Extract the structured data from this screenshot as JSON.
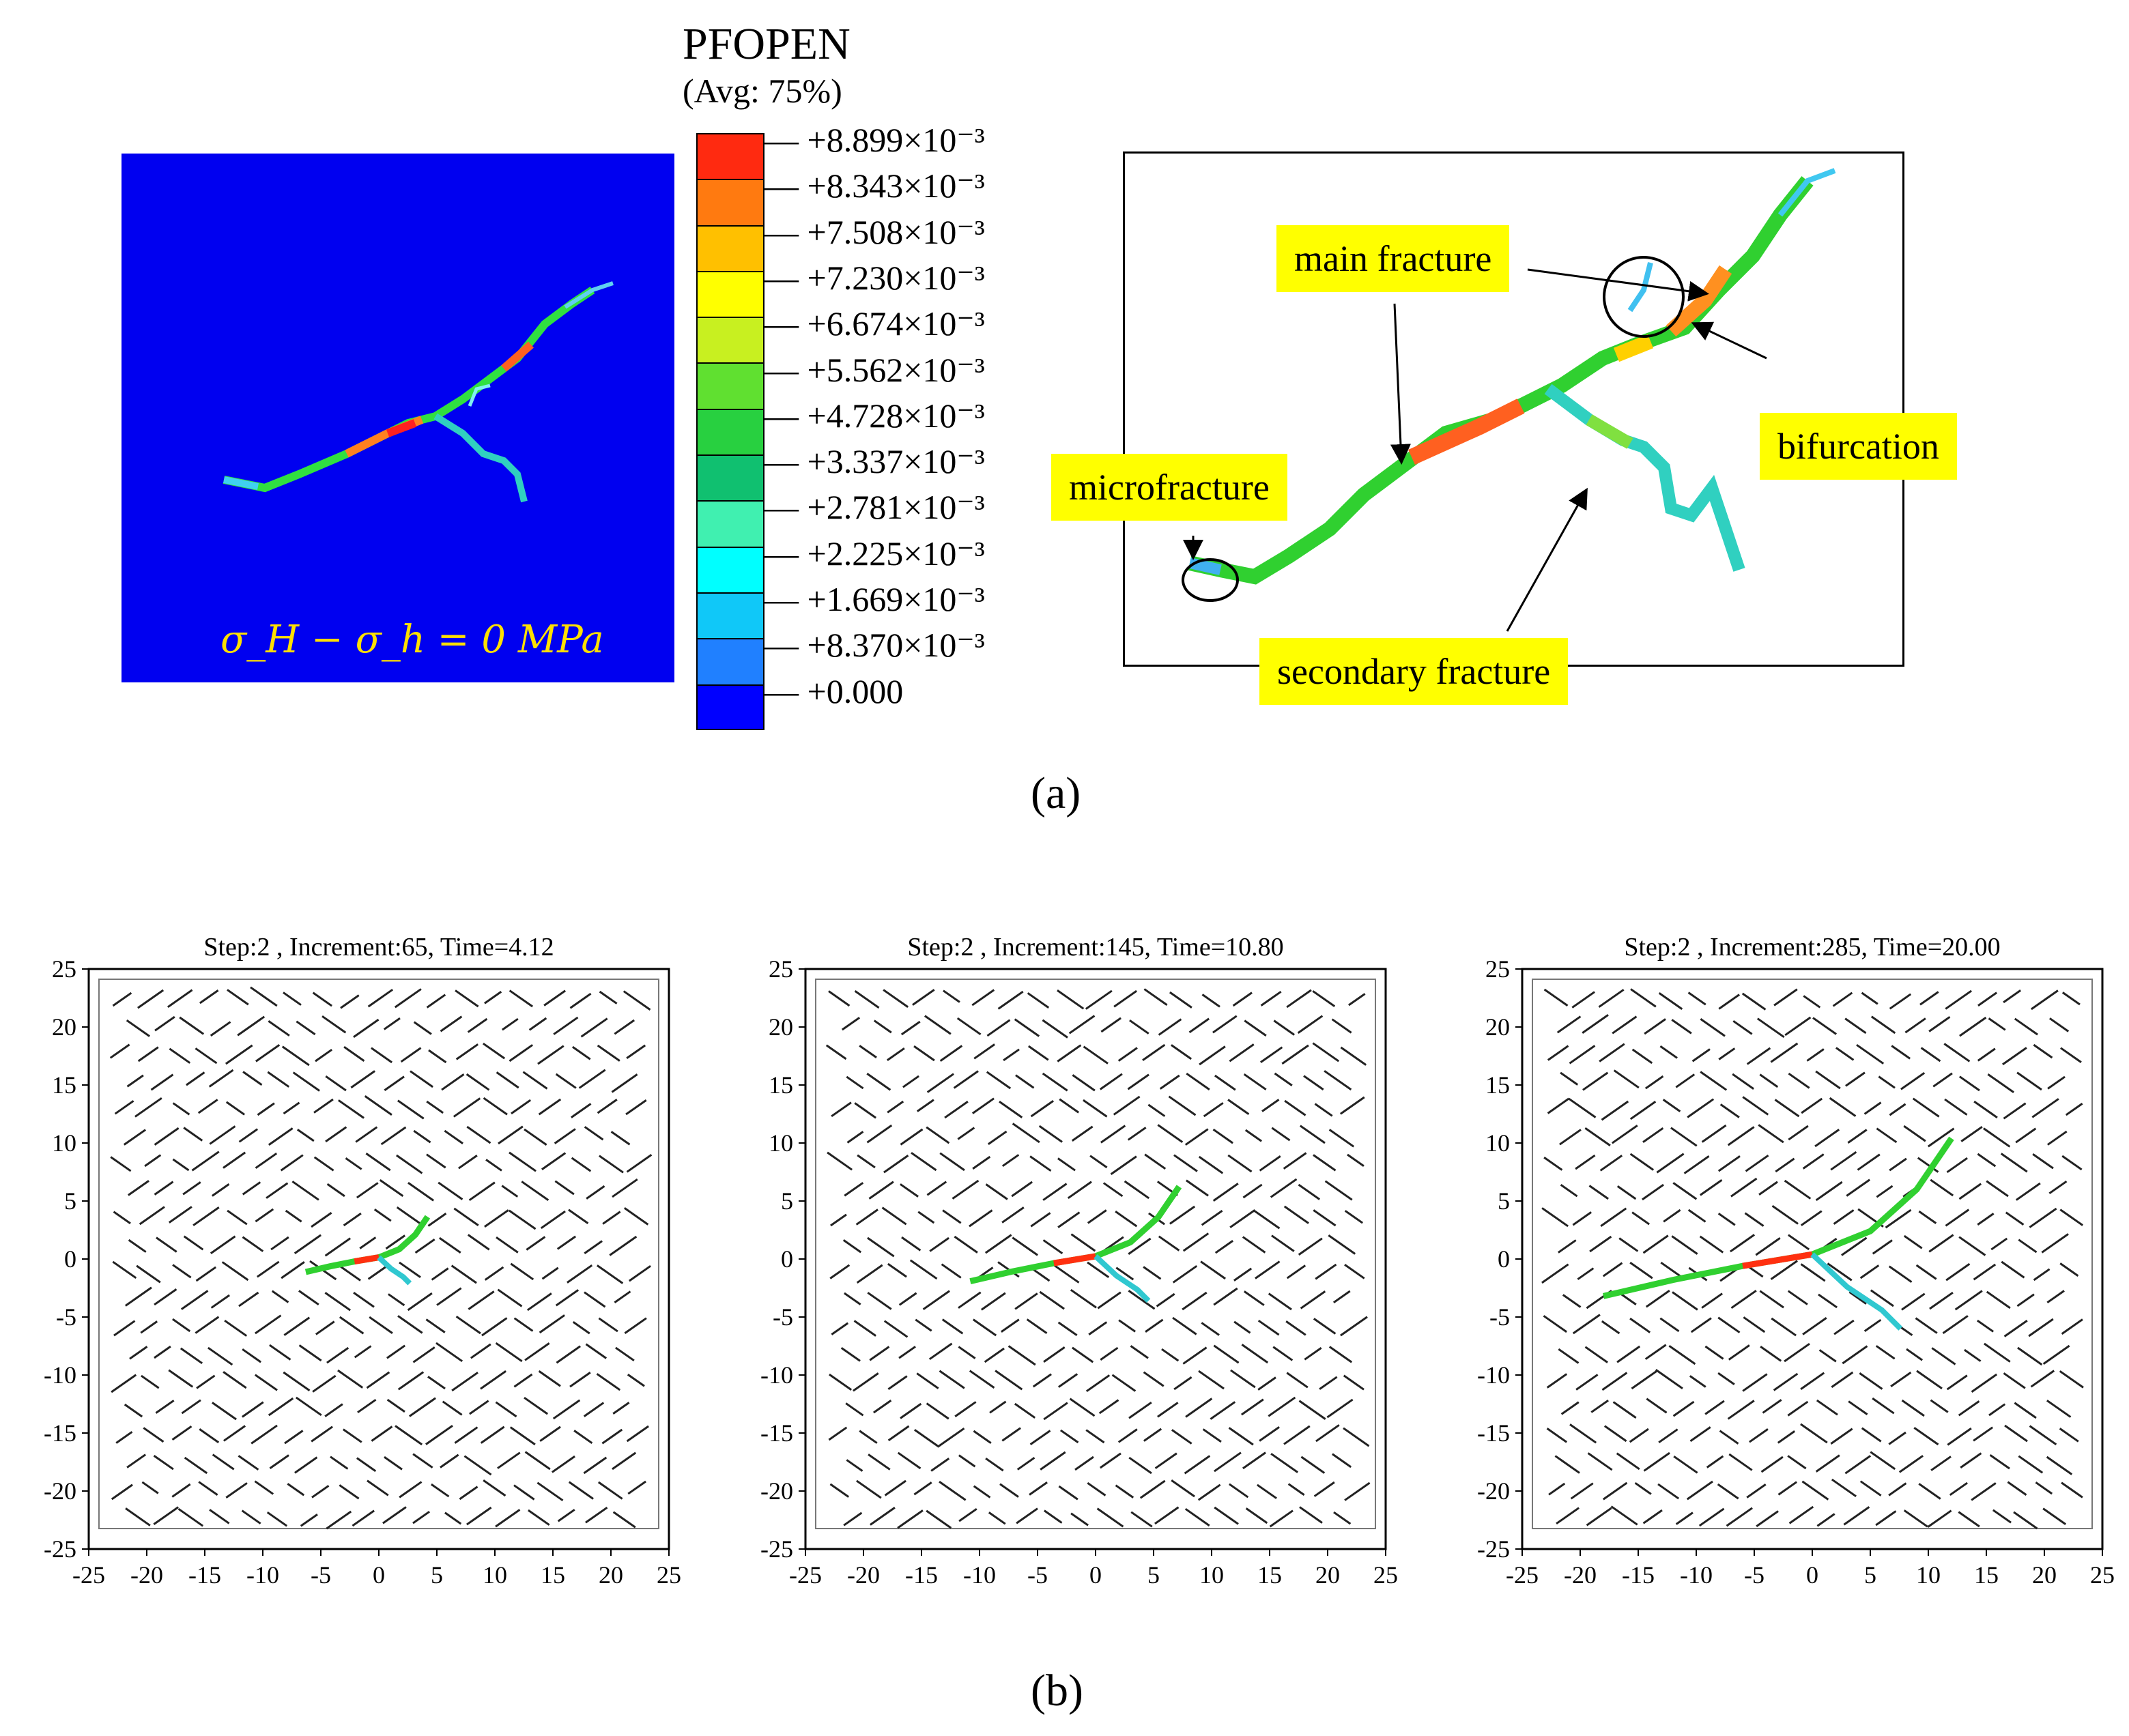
{
  "panel_a": {
    "contour_label": "σ_H − σ_h = 0 MPa",
    "legend": {
      "title": "PFOPEN",
      "subtitle": "(Avg: 75%)",
      "ticks": [
        "+8.899×10⁻³",
        "+8.343×10⁻³",
        "+7.508×10⁻³",
        "+7.230×10⁻³",
        "+6.674×10⁻³",
        "+5.562×10⁻³",
        "+4.728×10⁻³",
        "+3.337×10⁻³",
        "+2.781×10⁻³",
        "+2.225×10⁻³",
        "+1.669×10⁻³",
        "+8.370×10⁻³",
        "+0.000"
      ],
      "colors": [
        "#ff2a10",
        "#ff7a10",
        "#ffc000",
        "#ffff00",
        "#c8f020",
        "#60e030",
        "#28d040",
        "#10c070",
        "#40f0b0",
        "#00ffff",
        "#10c8f8",
        "#2080ff",
        "#0000ff"
      ]
    },
    "annotations": {
      "main_fracture": "main fracture",
      "bifurcation": "bifurcation",
      "microfracture": "microfracture",
      "secondary_fracture": "secondary fracture"
    },
    "caption": "(a)"
  },
  "panel_b": {
    "plots": [
      {
        "title": "Step:2 , Increment:65, Time=4.12"
      },
      {
        "title": "Step:2 , Increment:145, Time=10.80"
      },
      {
        "title": "Step:2 , Increment:285, Time=20.00"
      }
    ],
    "y_ticks": [
      "25",
      "20",
      "15",
      "10",
      "5",
      "0",
      "-5",
      "-10",
      "-15",
      "-20",
      "-25"
    ],
    "x_ticks": [
      "-25",
      "-20",
      "-15",
      "-10",
      "-5",
      "0",
      "5",
      "10",
      "15",
      "20",
      "25"
    ],
    "caption": "(b)"
  },
  "colors": {
    "background_field": "#0000f0",
    "tag": "#ffff00"
  }
}
